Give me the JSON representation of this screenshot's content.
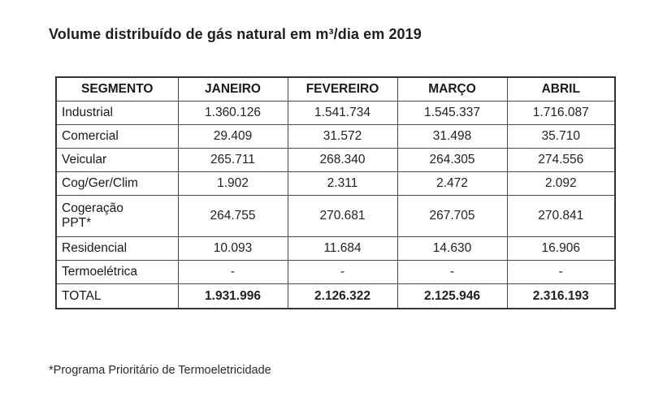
{
  "title": "Volume distribuído de gás natural em m³/dia em 2019",
  "table": {
    "headers": [
      "SEGMENTO",
      "JANEIRO",
      "FEVEREIRO",
      "MARÇO",
      "ABRIL"
    ],
    "rows": [
      {
        "segment": "Industrial",
        "values": [
          "1.360.126",
          "1.541.734",
          "1.545.337",
          "1.716.087"
        ]
      },
      {
        "segment": "Comercial",
        "values": [
          "29.409",
          "31.572",
          "31.498",
          "35.710"
        ]
      },
      {
        "segment": "Veicular",
        "values": [
          "265.711",
          "268.340",
          "264.305",
          "274.556"
        ]
      },
      {
        "segment": "Cog/Ger/Clim",
        "values": [
          "1.902",
          "2.311",
          "2.472",
          "2.092"
        ]
      },
      {
        "segment_line1": "Cogeração",
        "segment_line2": "PPT*",
        "values": [
          "264.755",
          "270.681",
          "267.705",
          "270.841"
        ]
      },
      {
        "segment": "Residencial",
        "values": [
          "10.093",
          "11.684",
          "14.630",
          "16.906"
        ]
      },
      {
        "segment": "Termoelétrica",
        "values": [
          "-",
          "-",
          "-",
          "-"
        ]
      }
    ],
    "total": {
      "segment": "TOTAL",
      "values": [
        "1.931.996",
        "2.126.322",
        "2.125.946",
        "2.316.193"
      ]
    }
  },
  "footnote": "*Programa Prioritário de Termoeletricidade"
}
